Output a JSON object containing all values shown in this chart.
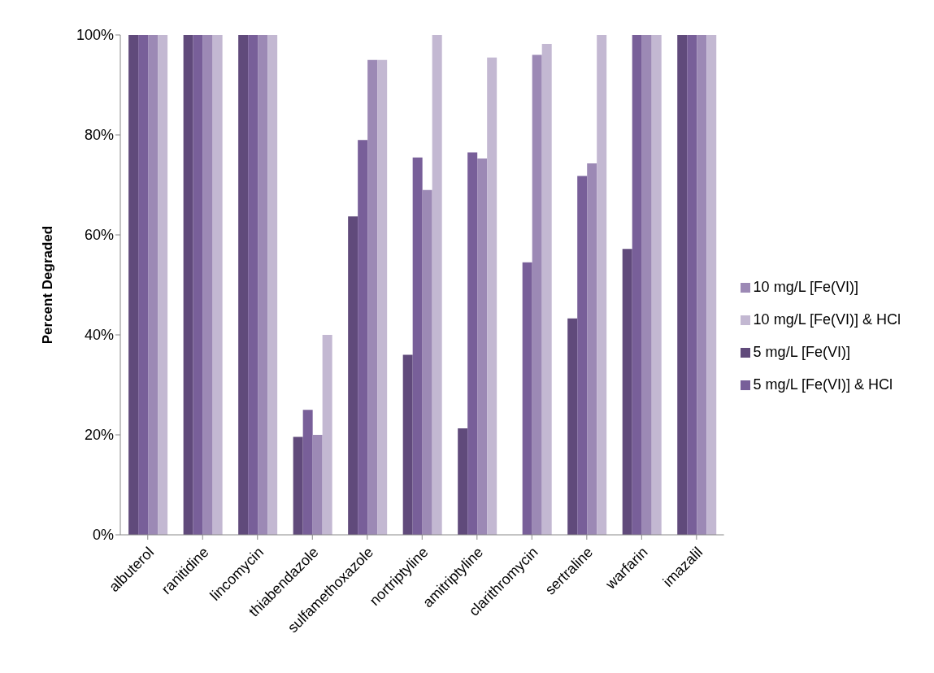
{
  "chart_data": {
    "type": "bar",
    "ylabel": "Percent Degraded",
    "categories": [
      "albuterol",
      "ranitidine",
      "lincomycin",
      "thiabendazole",
      "sulfamethoxazole",
      "nortriptyline",
      "amitriptyline",
      "clarithromycin",
      "sertraline",
      "warfarin",
      "imazalil"
    ],
    "series": [
      {
        "name": "5 mg/L [Fe(VI)]",
        "color": "#604a7b",
        "values": [
          100,
          100,
          100,
          19.6,
          63.7,
          36,
          21.3,
          0,
          43.3,
          57.2,
          100
        ]
      },
      {
        "name": "5 mg/L [Fe(VI)] & HCl",
        "color": "#785f99",
        "values": [
          100,
          100,
          100,
          25,
          79,
          75.5,
          76.5,
          54.5,
          71.8,
          100,
          100
        ]
      },
      {
        "name": "10 mg/L [Fe(VI)]",
        "color": "#9c89b5",
        "values": [
          100,
          100,
          100,
          20,
          95,
          69,
          75.3,
          96,
          74.3,
          100,
          100
        ]
      },
      {
        "name": "10 mg/L [Fe(VI)] & HCl",
        "color": "#c3b8d2",
        "values": [
          100,
          100,
          100,
          40,
          95,
          100,
          95.5,
          98.2,
          100,
          100,
          100
        ]
      }
    ],
    "ylim": [
      0,
      100
    ],
    "yticks": [
      {
        "value": 0,
        "label": "0%"
      },
      {
        "value": 20,
        "label": "20%"
      },
      {
        "value": 40,
        "label": "40%"
      },
      {
        "value": 60,
        "label": "60%"
      },
      {
        "value": 80,
        "label": "80%"
      },
      {
        "value": 100,
        "label": "100%"
      }
    ],
    "grid": false,
    "legend": "right"
  }
}
